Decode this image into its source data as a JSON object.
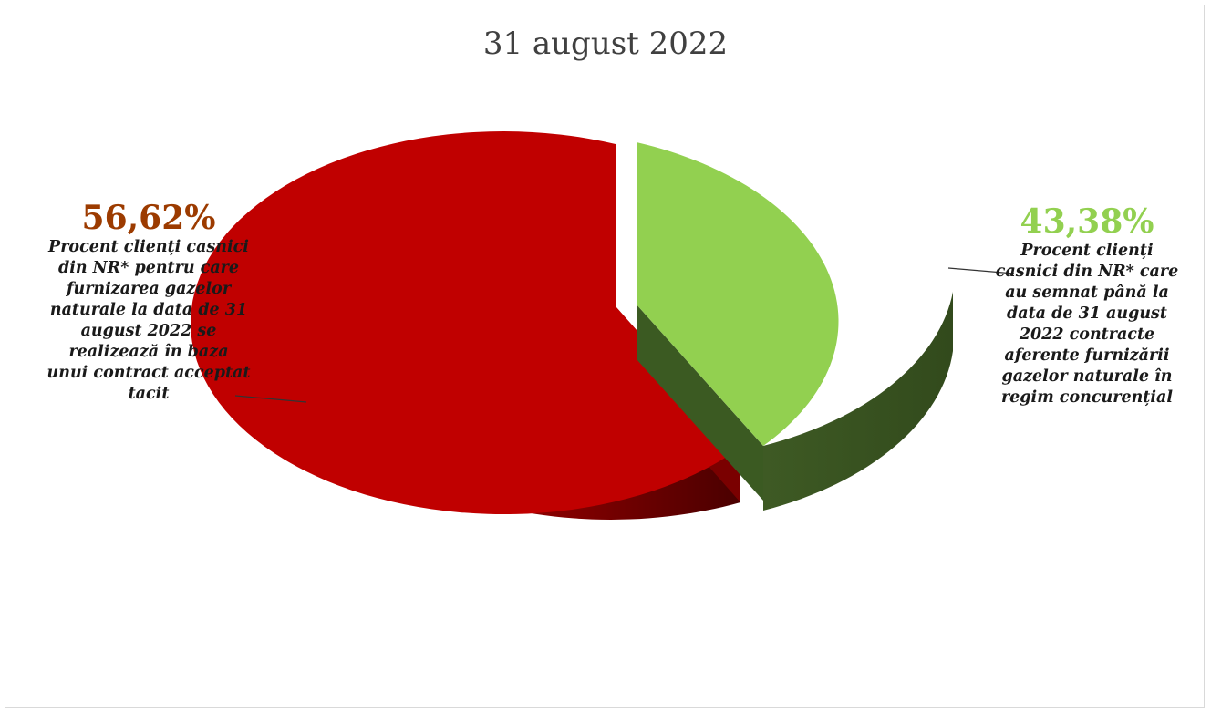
{
  "chart_data": {
    "type": "pie",
    "title": "31 august 2022",
    "slices": [
      {
        "value_label": "56,62%",
        "value": 56.62,
        "color": "#c00000",
        "description_lines": [
          "Procent clienți casnici",
          "din NR* pentru care",
          "furnizarea gazelor",
          "naturale la data de 31",
          "august 2022 se",
          "realizează în baza",
          "unui contract acceptat",
          "tacit"
        ]
      },
      {
        "value_label": "43,38%",
        "value": 43.38,
        "color": "#92d050",
        "description_lines": [
          "Procent clienți",
          "casnici din NR* care",
          "au semnat până la",
          "data de 31 august",
          "2022 contracte",
          "aferente furnizării",
          "gazelor naturale în",
          "regim concurențial"
        ]
      }
    ],
    "label_colors": {
      "left_pct": "#9c3b00",
      "right_pct": "#92d050"
    }
  }
}
